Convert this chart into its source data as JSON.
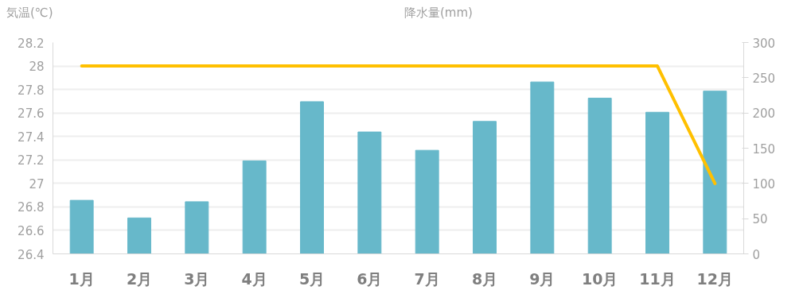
{
  "chart_data": {
    "type": "bar",
    "ylabel": "気温(℃)",
    "y2label": "降水量(mm)",
    "categories": [
      "1月",
      "2月",
      "3月",
      "4月",
      "5月",
      "6月",
      "7月",
      "8月",
      "9月",
      "10月",
      "11月",
      "12月"
    ],
    "series": [
      {
        "axis": "y2",
        "color": "#67b8ca",
        "values": [
          76,
          51,
          74,
          132,
          216,
          173,
          147,
          188,
          244,
          221,
          201,
          231
        ]
      },
      {
        "type": "line",
        "axis": "y",
        "color": "#ffc000",
        "values": [
          28,
          28,
          28,
          28,
          28,
          28,
          28,
          28,
          28,
          28,
          28,
          27
        ]
      }
    ],
    "ylim": [
      26.4,
      28.2
    ],
    "yticks": [
      26.4,
      26.6,
      26.8,
      27,
      27.2,
      27.4,
      27.6,
      27.8,
      28,
      28.2
    ],
    "y2lim": [
      0,
      300
    ],
    "y2ticks": [
      0,
      50,
      100,
      150,
      200,
      250,
      300
    ],
    "grid": "y",
    "marker": "none",
    "line_style": "solid"
  }
}
